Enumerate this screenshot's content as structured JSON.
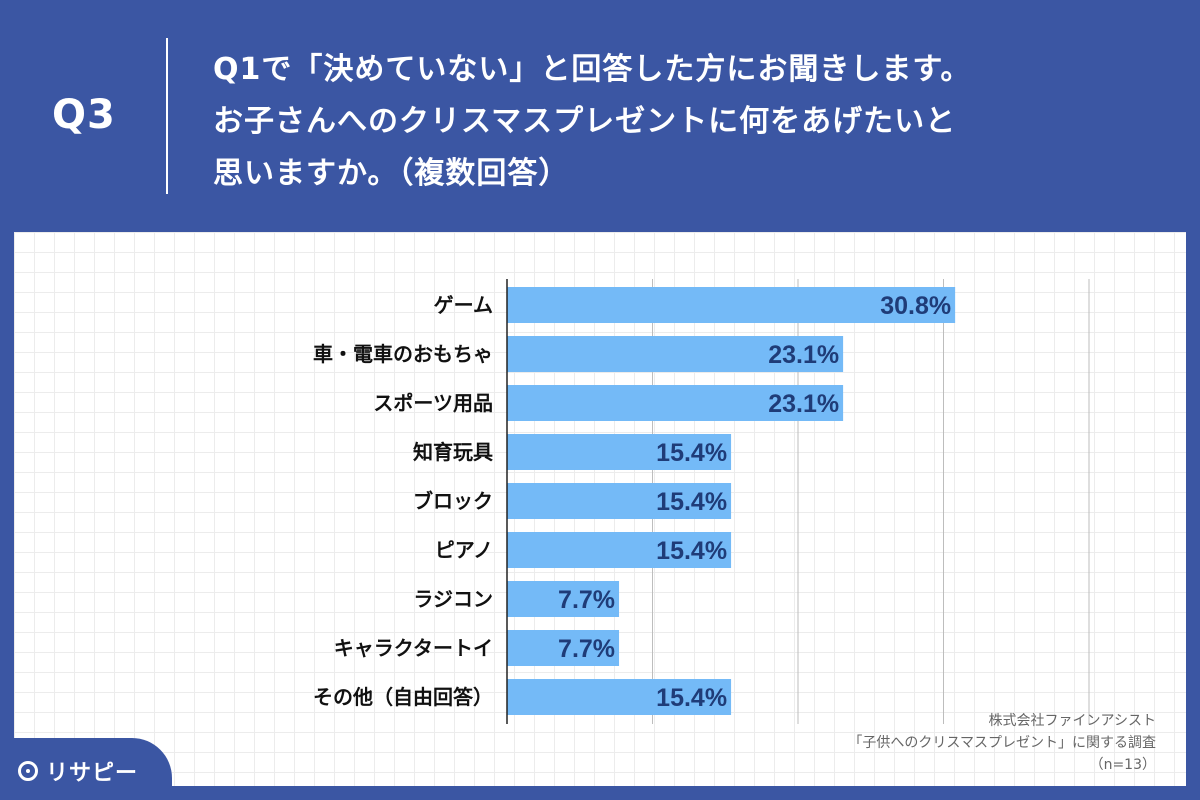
{
  "header": {
    "qlabel": "Q3",
    "question_lines": [
      "Q1で「決めていない」と回答した方にお聞きします。",
      "お子さんへのクリスマスプレゼントに何をあげたいと",
      "思いますか。（複数回答）"
    ]
  },
  "source": {
    "line1": "株式会社ファインアシスト",
    "line2": "「子供へのクリスマスプレゼント」に関する調査",
    "line3": "（n=13）"
  },
  "logo": {
    "text": "リサピー"
  },
  "colors": {
    "background": "#3b56a3",
    "bar": "#74baf7",
    "value_text": "#1f3c78",
    "gridline": "#bdbdbd"
  },
  "chart_data": {
    "type": "bar",
    "orientation": "horizontal",
    "categories": [
      "ゲーム",
      "車・電車のおもちゃ",
      "スポーツ用品",
      "知育玩具",
      "ブロック",
      "ピアノ",
      "ラジコン",
      "キャラクタートイ",
      "その他（自由回答）"
    ],
    "values": [
      30.8,
      23.1,
      23.1,
      15.4,
      15.4,
      15.4,
      7.7,
      7.7,
      15.4
    ],
    "value_labels": [
      "30.8%",
      "23.1%",
      "23.1%",
      "15.4%",
      "15.4%",
      "15.4%",
      "7.7%",
      "7.7%",
      "15.4%"
    ],
    "xlim": [
      0,
      40
    ],
    "grid": true,
    "title": "",
    "xlabel": "",
    "ylabel": ""
  }
}
